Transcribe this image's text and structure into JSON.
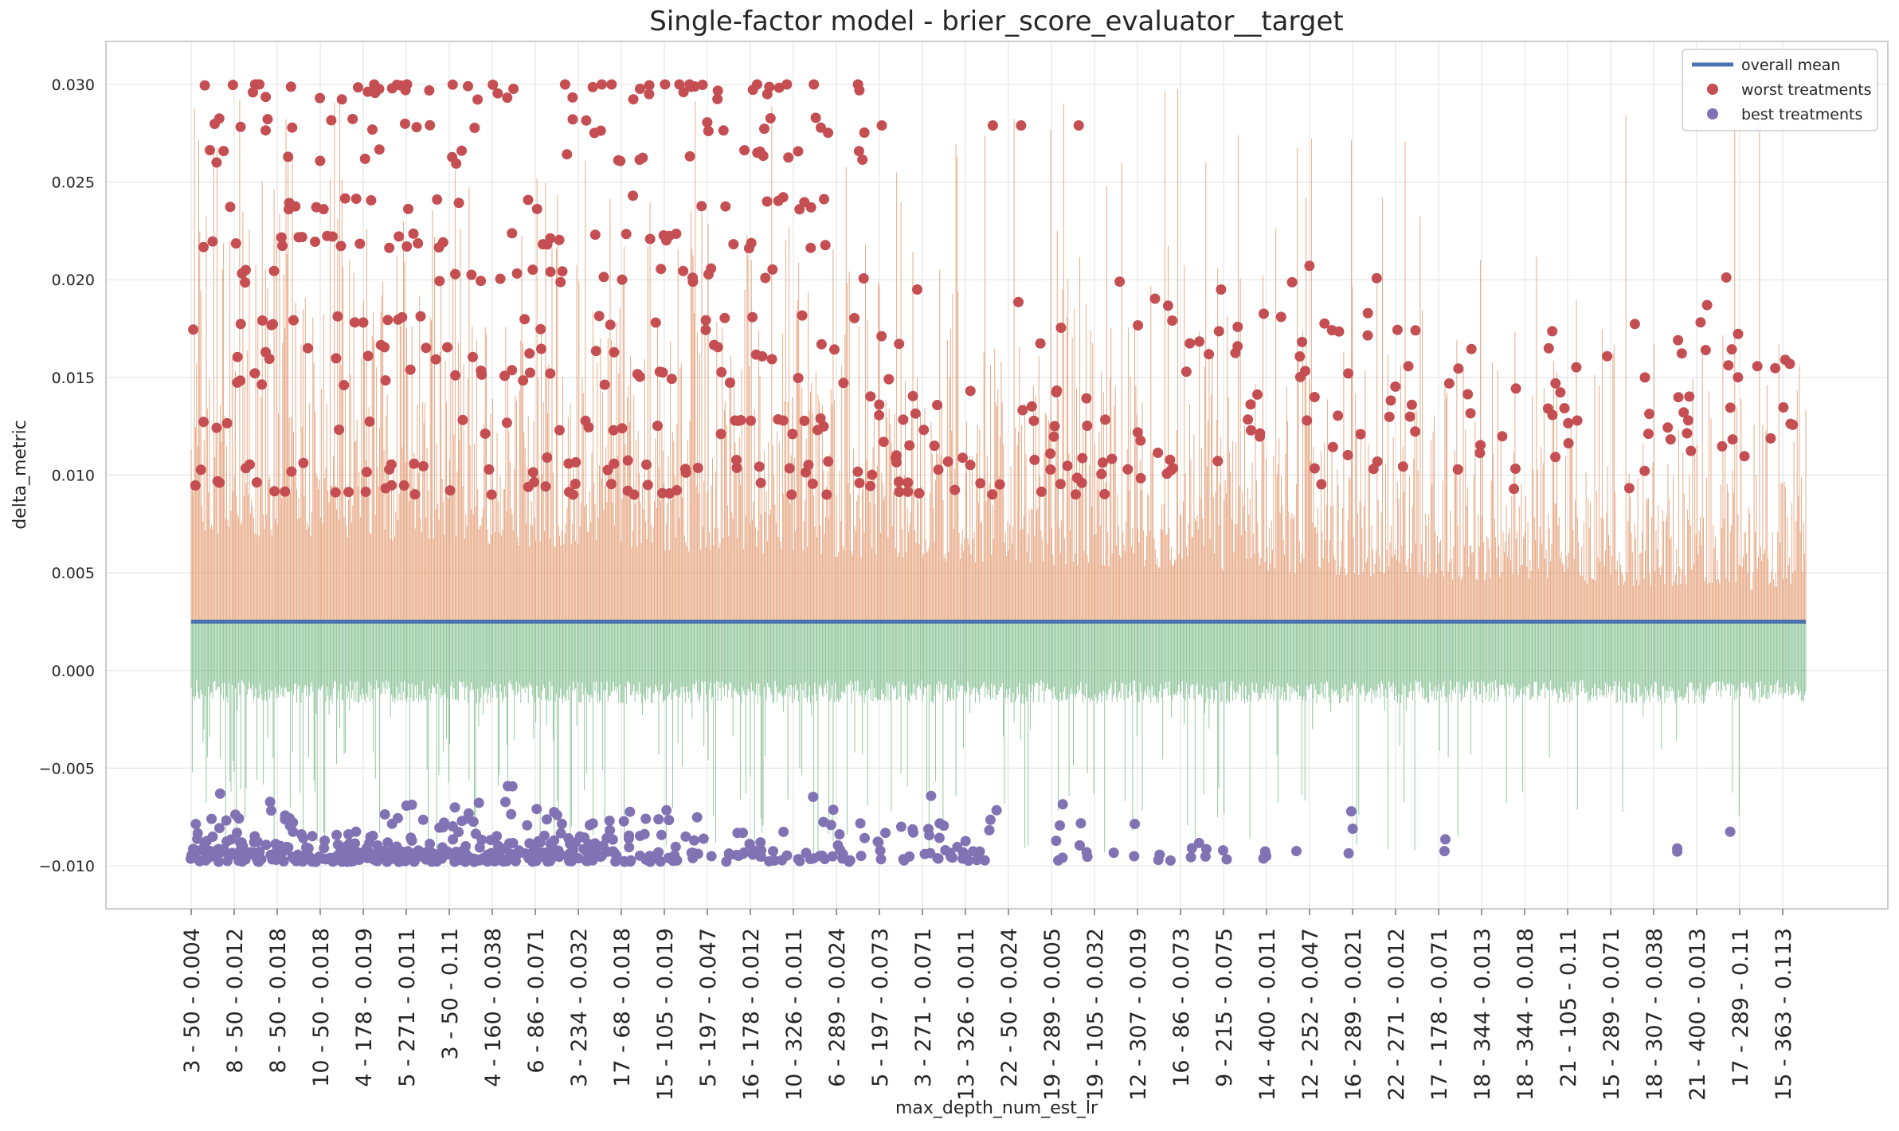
{
  "chart_data": {
    "type": "scatter",
    "title": "Single-factor model - brier_score_evaluator__target",
    "xlabel": "max_depth_num_est_lr",
    "ylabel": "delta_metric",
    "ylim": [
      -0.0122,
      0.0322
    ],
    "yticks": [
      0.03,
      0.025,
      0.02,
      0.015,
      0.01,
      0.005,
      0.0,
      -0.005,
      -0.01
    ],
    "ytick_labels": [
      "0.030",
      "0.025",
      "0.020",
      "0.015",
      "0.010",
      "0.005",
      "0.000",
      "−0.005",
      "−0.010"
    ],
    "categories": [
      "3 - 50 - 0.004",
      "8 - 50 - 0.012",
      "8 - 50 - 0.018",
      "10 - 50 - 0.018",
      "4 - 178 - 0.019",
      "5 - 271 - 0.011",
      "3 - 50 - 0.11",
      "4 - 160 - 0.038",
      "6 - 86 - 0.071",
      "3 - 234 - 0.032",
      "17 - 68 - 0.018",
      "15 - 105 - 0.019",
      "5 - 197 - 0.047",
      "16 - 178 - 0.012",
      "10 - 326 - 0.011",
      "6 - 289 - 0.024",
      "5 - 197 - 0.073",
      "3 - 271 - 0.071",
      "13 - 326 - 0.011",
      "22 - 50 - 0.024",
      "19 - 289 - 0.005",
      "19 - 105 - 0.032",
      "12 - 307 - 0.019",
      "16 - 86 - 0.073",
      "9 - 215 - 0.075",
      "14 - 400 - 0.011",
      "12 - 252 - 0.047",
      "16 - 289 - 0.021",
      "22 - 271 - 0.012",
      "17 - 178 - 0.071",
      "18 - 344 - 0.013",
      "18 - 344 - 0.018",
      "21 - 105 - 0.11",
      "15 - 289 - 0.071",
      "18 - 307 - 0.038",
      "21 - 400 - 0.013",
      "17 - 289 - 0.11",
      "15 - 363 - 0.113"
    ],
    "overall_mean": 0.0025,
    "n_treatments": 1500,
    "grid": true,
    "legend_position": "top-right",
    "series": [
      {
        "name": "overall mean",
        "kind": "line",
        "color": "#4c72b0"
      },
      {
        "name": "worst treatments",
        "kind": "points",
        "color": "#c44e52",
        "stem_color": "#dd8452",
        "value_range": [
          0.009,
          0.03
        ]
      },
      {
        "name": "best treatments",
        "kind": "points",
        "color": "#8172b3",
        "stem_color": "#55a868",
        "value_range": [
          -0.0098,
          -0.0056
        ]
      }
    ]
  }
}
